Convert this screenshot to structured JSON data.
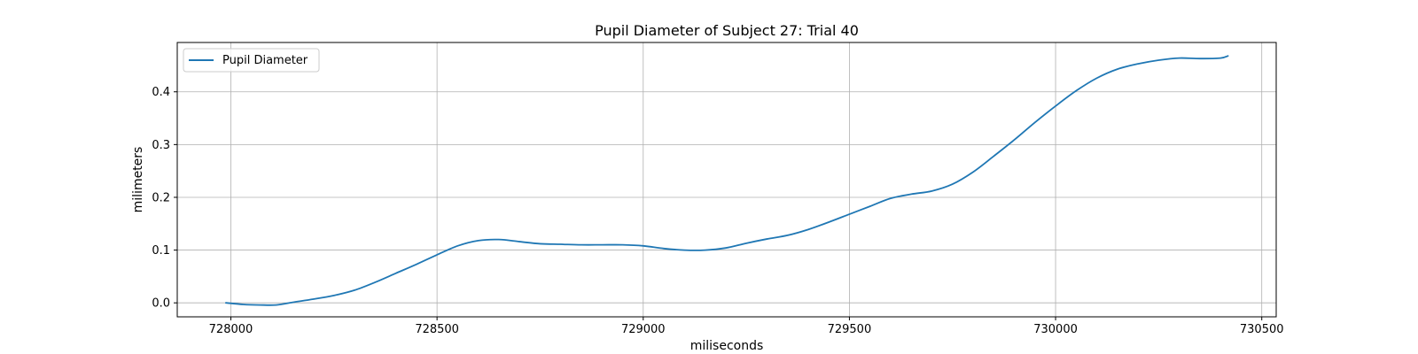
{
  "chart_data": {
    "type": "line",
    "title": "Pupil Diameter of Subject 27: Trial 40",
    "xlabel": "miliseconds",
    "ylabel": "milimeters",
    "xlim": [
      727870,
      730535
    ],
    "ylim": [
      -0.0265,
      0.4935
    ],
    "xticks": [
      728000,
      728500,
      729000,
      729500,
      730000,
      730500
    ],
    "yticks": [
      0.0,
      0.1,
      0.2,
      0.3,
      0.4
    ],
    "xtick_labels": [
      "728000",
      "728500",
      "729000",
      "729500",
      "730000",
      "730500"
    ],
    "ytick_labels": [
      "0.0",
      "0.1",
      "0.2",
      "0.3",
      "0.4"
    ],
    "grid": true,
    "legend_position": "upper-left",
    "line_color": "#1f77b4",
    "series": [
      {
        "name": "Pupil Diameter",
        "x": [
          727988,
          728030,
          728070,
          728110,
          728150,
          728200,
          728250,
          728300,
          728350,
          728400,
          728450,
          728500,
          728550,
          728600,
          728650,
          728700,
          728750,
          728800,
          728850,
          728900,
          728950,
          729000,
          729050,
          729100,
          729150,
          729200,
          729250,
          729300,
          729350,
          729400,
          729450,
          729500,
          729550,
          729600,
          729650,
          729700,
          729750,
          729800,
          729850,
          729900,
          729950,
          730000,
          730050,
          730100,
          730150,
          730200,
          730250,
          730300,
          730350,
          730400,
          730418
        ],
        "y": [
          0.0,
          -0.003,
          -0.004,
          -0.004,
          0.001,
          0.007,
          0.014,
          0.024,
          0.039,
          0.056,
          0.073,
          0.091,
          0.108,
          0.118,
          0.12,
          0.116,
          0.112,
          0.111,
          0.11,
          0.11,
          0.11,
          0.108,
          0.103,
          0.1,
          0.1,
          0.104,
          0.113,
          0.121,
          0.128,
          0.139,
          0.153,
          0.168,
          0.183,
          0.198,
          0.206,
          0.212,
          0.225,
          0.248,
          0.278,
          0.309,
          0.342,
          0.373,
          0.402,
          0.426,
          0.443,
          0.453,
          0.46,
          0.464,
          0.463,
          0.464,
          0.468
        ]
      }
    ]
  }
}
